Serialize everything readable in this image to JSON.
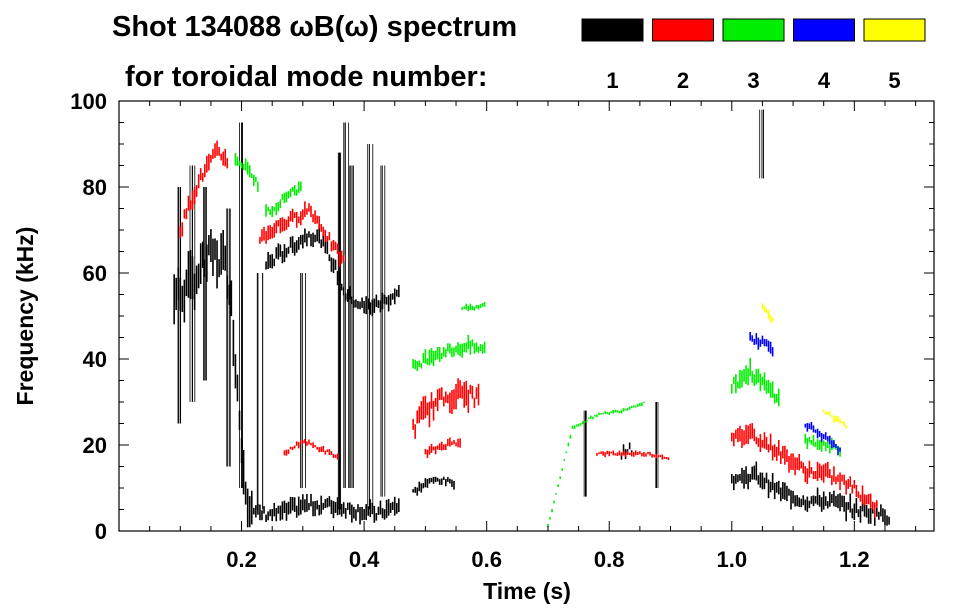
{
  "chart_data": {
    "type": "spectrogram",
    "title_line1": "Shot 134088 ωB(ω) spectrum",
    "title_line2": "for toroidal mode number:",
    "xlabel": "Time (s)",
    "ylabel": "Frequency (kHz)",
    "xlim": [
      0.0,
      1.33
    ],
    "ylim": [
      0,
      100
    ],
    "x_ticks": [
      0.2,
      0.4,
      0.6,
      0.8,
      1.0,
      1.2
    ],
    "x_tick_labels": [
      "0.2",
      "0.4",
      "0.6",
      "0.8",
      "1.0",
      "1.2"
    ],
    "y_ticks": [
      0,
      20,
      40,
      60,
      80,
      100
    ],
    "y_tick_labels": [
      "0",
      "20",
      "40",
      "60",
      "80",
      "100"
    ],
    "legend": [
      {
        "label": "1",
        "color": "#000000"
      },
      {
        "label": "2",
        "color": "#ff0000"
      },
      {
        "label": "3",
        "color": "#00ee00"
      },
      {
        "label": "4",
        "color": "#0000ff"
      },
      {
        "label": "5",
        "color": "#ffff00"
      }
    ],
    "series": [
      {
        "name": "n=1",
        "color": "#000000",
        "segments": [
          {
            "type": "band",
            "points": [
              [
                0.09,
                55
              ],
              [
                0.11,
                56
              ],
              [
                0.13,
                60
              ],
              [
                0.15,
                64
              ],
              [
                0.17,
                63
              ],
              [
                0.18,
                58
              ],
              [
                0.19,
                40
              ],
              [
                0.2,
                20
              ],
              [
                0.21,
                8
              ],
              [
                0.22,
                5
              ]
            ],
            "width": 8
          },
          {
            "type": "band",
            "points": [
              [
                0.22,
                4
              ],
              [
                0.26,
                4
              ],
              [
                0.3,
                6
              ],
              [
                0.34,
                6
              ],
              [
                0.38,
                5
              ],
              [
                0.42,
                4
              ],
              [
                0.46,
                6
              ]
            ],
            "width": 3
          },
          {
            "type": "band",
            "points": [
              [
                0.24,
                62
              ],
              [
                0.28,
                66
              ],
              [
                0.31,
                69
              ],
              [
                0.33,
                68
              ],
              [
                0.35,
                62
              ],
              [
                0.37,
                55
              ],
              [
                0.4,
                52
              ],
              [
                0.43,
                53
              ],
              [
                0.46,
                56
              ]
            ],
            "width": 3
          },
          {
            "type": "band",
            "points": [
              [
                0.48,
                9
              ],
              [
                0.5,
                11
              ],
              [
                0.52,
                12
              ],
              [
                0.55,
                11
              ]
            ],
            "width": 1.5
          },
          {
            "type": "band",
            "points": [
              [
                0.82,
                18
              ],
              [
                0.83,
                19
              ],
              [
                0.84,
                19
              ]
            ],
            "width": 2
          },
          {
            "type": "band",
            "points": [
              [
                1.0,
                12
              ],
              [
                1.04,
                13
              ],
              [
                1.08,
                9
              ],
              [
                1.12,
                7
              ],
              [
                1.16,
                7
              ],
              [
                1.2,
                5
              ],
              [
                1.24,
                4
              ],
              [
                1.26,
                3
              ]
            ],
            "width": 3
          }
        ]
      },
      {
        "name": "n=2",
        "color": "#ff0000",
        "segments": [
          {
            "type": "band",
            "points": [
              [
                0.1,
                70
              ],
              [
                0.12,
                78
              ],
              [
                0.14,
                84
              ],
              [
                0.16,
                88
              ],
              [
                0.18,
                86
              ]
            ],
            "width": 3
          },
          {
            "type": "band",
            "points": [
              [
                0.23,
                68
              ],
              [
                0.26,
                71
              ],
              [
                0.29,
                73
              ],
              [
                0.31,
                75
              ],
              [
                0.33,
                71
              ],
              [
                0.35,
                66
              ],
              [
                0.37,
                62
              ]
            ],
            "width": 2.5
          },
          {
            "type": "band",
            "points": [
              [
                0.27,
                18
              ],
              [
                0.3,
                21
              ],
              [
                0.33,
                19
              ],
              [
                0.36,
                17
              ]
            ],
            "width": 1
          },
          {
            "type": "band",
            "points": [
              [
                0.48,
                24
              ],
              [
                0.5,
                28
              ],
              [
                0.53,
                31
              ],
              [
                0.56,
                32
              ],
              [
                0.59,
                31
              ]
            ],
            "width": 4
          },
          {
            "type": "band",
            "points": [
              [
                0.5,
                18
              ],
              [
                0.53,
                20
              ],
              [
                0.56,
                21
              ]
            ],
            "width": 1.5
          },
          {
            "type": "band",
            "points": [
              [
                0.78,
                18
              ],
              [
                0.82,
                18
              ],
              [
                0.86,
                18
              ],
              [
                0.9,
                17
              ]
            ],
            "width": 0.8
          },
          {
            "type": "band",
            "points": [
              [
                1.0,
                21
              ],
              [
                1.03,
                23
              ],
              [
                1.06,
                20
              ],
              [
                1.09,
                17
              ],
              [
                1.12,
                14
              ],
              [
                1.16,
                13
              ],
              [
                1.2,
                10
              ],
              [
                1.24,
                5
              ]
            ],
            "width": 3
          }
        ]
      },
      {
        "name": "n=3",
        "color": "#00ee00",
        "segments": [
          {
            "type": "band",
            "points": [
              [
                0.19,
                87
              ],
              [
                0.21,
                84
              ],
              [
                0.23,
                80
              ]
            ],
            "width": 2
          },
          {
            "type": "band",
            "points": [
              [
                0.24,
                74
              ],
              [
                0.26,
                76
              ],
              [
                0.28,
                79
              ],
              [
                0.3,
                80
              ]
            ],
            "width": 2
          },
          {
            "type": "band",
            "points": [
              [
                0.48,
                38
              ],
              [
                0.51,
                41
              ],
              [
                0.54,
                42
              ],
              [
                0.57,
                43
              ],
              [
                0.6,
                42
              ]
            ],
            "width": 2.5
          },
          {
            "type": "band",
            "points": [
              [
                0.56,
                52
              ],
              [
                0.58,
                52
              ],
              [
                0.6,
                53
              ]
            ],
            "width": 1
          },
          {
            "type": "band",
            "points": [
              [
                0.7,
                1
              ],
              [
                0.74,
                24
              ],
              [
                0.78,
                27
              ],
              [
                0.82,
                28
              ],
              [
                0.86,
                30
              ]
            ],
            "width": 0.6
          },
          {
            "type": "band",
            "points": [
              [
                1.0,
                34
              ],
              [
                1.03,
                37
              ],
              [
                1.06,
                33
              ],
              [
                1.08,
                31
              ]
            ],
            "width": 3
          },
          {
            "type": "band",
            "points": [
              [
                1.12,
                21
              ],
              [
                1.15,
                20
              ],
              [
                1.18,
                19
              ]
            ],
            "width": 2
          }
        ]
      },
      {
        "name": "n=4",
        "color": "#0000ff",
        "segments": [
          {
            "type": "band",
            "points": [
              [
                1.03,
                45
              ],
              [
                1.05,
                44
              ],
              [
                1.07,
                42
              ]
            ],
            "width": 2
          },
          {
            "type": "band",
            "points": [
              [
                1.12,
                25
              ],
              [
                1.15,
                22
              ],
              [
                1.18,
                18
              ]
            ],
            "width": 1.5
          }
        ]
      },
      {
        "name": "n=5",
        "color": "#ffff00",
        "segments": [
          {
            "type": "band",
            "points": [
              [
                1.05,
                52
              ],
              [
                1.06,
                50
              ],
              [
                1.07,
                49
              ]
            ],
            "width": 1.5
          },
          {
            "type": "band",
            "points": [
              [
                1.15,
                28
              ],
              [
                1.17,
                26
              ],
              [
                1.19,
                24
              ]
            ],
            "width": 1
          }
        ]
      }
    ],
    "bursts": [
      {
        "t": 0.1,
        "f": [
          25,
          80
        ]
      },
      {
        "t": 0.12,
        "f": [
          30,
          85
        ]
      },
      {
        "t": 0.14,
        "f": [
          35,
          80
        ]
      },
      {
        "t": 0.18,
        "f": [
          15,
          75
        ]
      },
      {
        "t": 0.2,
        "f": [
          10,
          95
        ]
      },
      {
        "t": 0.23,
        "f": [
          5,
          60
        ]
      },
      {
        "t": 0.3,
        "f": [
          10,
          60
        ]
      },
      {
        "t": 0.36,
        "f": [
          5,
          88
        ]
      },
      {
        "t": 0.37,
        "f": [
          10,
          95
        ]
      },
      {
        "t": 0.38,
        "f": [
          10,
          85
        ]
      },
      {
        "t": 0.41,
        "f": [
          5,
          90
        ]
      },
      {
        "t": 0.43,
        "f": [
          8,
          85
        ]
      },
      {
        "t": 0.76,
        "f": [
          8,
          28
        ]
      },
      {
        "t": 0.88,
        "f": [
          10,
          30
        ]
      },
      {
        "t": 1.05,
        "f": [
          82,
          98
        ]
      }
    ]
  }
}
